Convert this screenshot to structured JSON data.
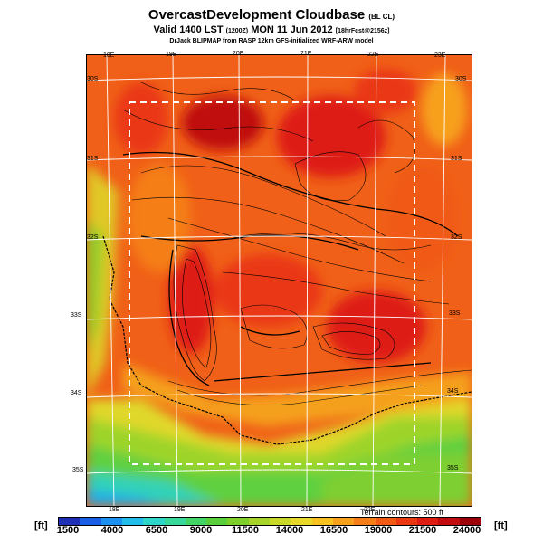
{
  "title": "OvercastDevelopment Cloudbase",
  "title_suffix": "(BL CL)",
  "subtitle": "Valid 1400 LST",
  "subtitle_small1": "(1200Z)",
  "subtitle_main2": "MON 11 Jun 2012",
  "subtitle_small2": "[18hrFcst@2156z]",
  "credit": "DrJack BLIPMAP from RASP 12km GFS-initialized WRF-ARW model",
  "lon_labels_top": [
    "18E",
    "19E",
    "20E",
    "21E",
    "22E",
    "23E"
  ],
  "lon_labels_bottom": [
    "18E",
    "19E",
    "20E",
    "21E",
    "22E"
  ],
  "lat_labels_left": [
    "30S",
    "31S",
    "32S",
    "33S",
    "34S",
    "35S"
  ],
  "lat_labels_right": [
    "30S",
    "31S",
    "32S",
    "33S",
    "34S",
    "35S"
  ],
  "terrain_note": "Terrain contours: 500 ft",
  "unit_label": "[ft]",
  "colorbar_ticks": [
    "1500",
    "4000",
    "6500",
    "9000",
    "11500",
    "14000",
    "16500",
    "19000",
    "21500",
    "24000"
  ],
  "colorbar_colors": [
    "#1e2fb8",
    "#1a5ee8",
    "#1c90f0",
    "#22bde8",
    "#2ed6c8",
    "#37d89a",
    "#43d466",
    "#58cf3a",
    "#7ecf2a",
    "#a6d42a",
    "#c9d92a",
    "#e6d92a",
    "#f5c21f",
    "#f7a01c",
    "#f57e18",
    "#f05a14",
    "#ea3812",
    "#de1c12",
    "#c20c10",
    "#9c0008"
  ]
}
